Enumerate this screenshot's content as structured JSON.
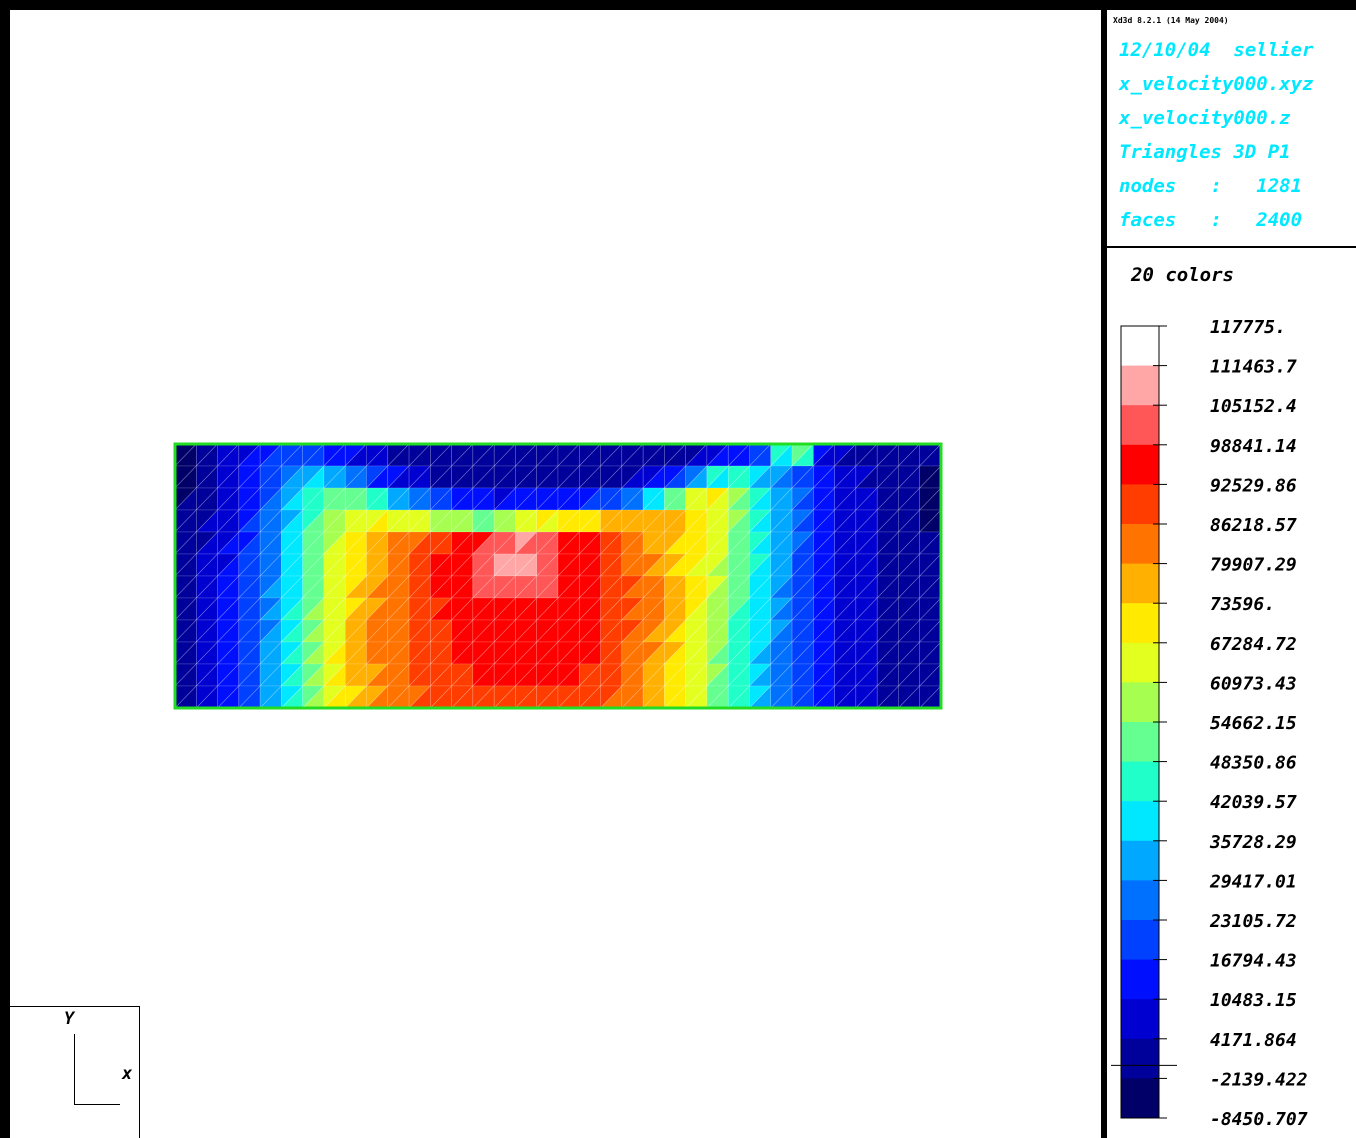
{
  "header": {
    "version": "Xd3d 8.2.1 (14 May 2004)",
    "info_lines": [
      "12/10/04  sellier",
      "x_velocity000.xyz",
      "x_velocity000.z",
      "Triangles 3D P1",
      "nodes   :   1281",
      "faces   :   2400"
    ],
    "text_color": "#00e8ff"
  },
  "legend": {
    "title": "20 colors",
    "colors": [
      "#ffffff",
      "#ffa7a7",
      "#ff5757",
      "#ff0000",
      "#ff3d00",
      "#ff7300",
      "#ffb000",
      "#ffea00",
      "#e2ff20",
      "#a6ff50",
      "#64ff90",
      "#20ffca",
      "#00e8ff",
      "#00a8ff",
      "#0070ff",
      "#0040ff",
      "#0010ff",
      "#0000d0",
      "#00009a",
      "#000068"
    ],
    "labels": [
      "117775.",
      "111463.7",
      "105152.4",
      "98841.14",
      "92529.86",
      "86218.57",
      "79907.29",
      "73596.",
      "67284.72",
      "60973.43",
      "54662.15",
      "48350.86",
      "42039.57",
      "35728.29",
      "29417.01",
      "23105.72",
      "16794.43",
      "10483.15",
      "4171.864",
      "-2139.422",
      "-8450.707"
    ]
  },
  "chart_data": {
    "type": "heatmap",
    "title": "",
    "field": "x_velocity",
    "value_range": [
      -8450.707,
      117775.0
    ],
    "levels": 20,
    "grid": "triangular mesh",
    "outline_color": "#22dd22",
    "cols": 36,
    "rows": 12,
    "values": [
      [
        -3000,
        -2000,
        3000,
        8000,
        14000,
        18000,
        16000,
        12000,
        9000,
        6000,
        3000,
        1000,
        0,
        0,
        0,
        0,
        0,
        0,
        0,
        0,
        0,
        0,
        0,
        0,
        0,
        0,
        2000,
        12000,
        30000,
        80000,
        14000,
        4000,
        3000,
        0,
        0,
        -2000
      ],
      [
        -4000,
        -2000,
        5000,
        11000,
        18000,
        26000,
        34000,
        30000,
        22000,
        14000,
        8000,
        4000,
        2000,
        0,
        0,
        0,
        0,
        0,
        0,
        0,
        0,
        0,
        1000,
        3000,
        10000,
        30000,
        45000,
        38000,
        30000,
        22000,
        14000,
        8000,
        5000,
        2000,
        0,
        -2000
      ],
      [
        -4000,
        -1000,
        6000,
        12000,
        20000,
        30000,
        42000,
        50000,
        48000,
        40000,
        30000,
        20000,
        12000,
        6000,
        2000,
        0,
        0,
        0,
        0,
        0,
        1000,
        4000,
        18000,
        40000,
        60000,
        72000,
        62000,
        46000,
        36000,
        26000,
        18000,
        10000,
        6000,
        3000,
        0,
        -3000
      ],
      [
        -3000,
        1000,
        7000,
        13000,
        21000,
        32000,
        44000,
        55000,
        62000,
        65000,
        60000,
        55000,
        50000,
        45000,
        40000,
        38000,
        50000,
        55000,
        60000,
        62000,
        68000,
        76000,
        80000,
        76000,
        72000,
        68000,
        60000,
        48000,
        36000,
        26000,
        18000,
        11000,
        7000,
        3000,
        0,
        -3000
      ],
      [
        -2000,
        2000,
        8000,
        14000,
        22000,
        33000,
        46000,
        58000,
        67000,
        74000,
        80000,
        84000,
        86000,
        90000,
        96000,
        100000,
        104000,
        102000,
        98000,
        96000,
        90000,
        86000,
        80000,
        76000,
        72000,
        66000,
        58000,
        46000,
        36000,
        26000,
        18000,
        11000,
        7000,
        3000,
        0,
        -2000
      ],
      [
        -2000,
        3000,
        8000,
        15000,
        23000,
        34000,
        47000,
        59000,
        69000,
        76000,
        83000,
        88000,
        92000,
        95000,
        100000,
        108000,
        112000,
        106000,
        100000,
        96000,
        90000,
        86000,
        82000,
        76000,
        70000,
        64000,
        56000,
        46000,
        35000,
        25000,
        17000,
        11000,
        7000,
        3000,
        0,
        -2000
      ],
      [
        -1000,
        3000,
        9000,
        15000,
        24000,
        35000,
        48000,
        60000,
        70000,
        78000,
        84000,
        88000,
        93000,
        96000,
        98000,
        104000,
        106000,
        102000,
        98000,
        96000,
        92000,
        88000,
        84000,
        78000,
        72000,
        64000,
        54000,
        44000,
        34000,
        25000,
        17000,
        11000,
        7000,
        3000,
        0,
        -1000
      ],
      [
        -1000,
        4000,
        9000,
        16000,
        25000,
        36000,
        49000,
        61000,
        71000,
        78000,
        84000,
        88000,
        92000,
        95000,
        96000,
        98000,
        98000,
        98000,
        97000,
        95000,
        92000,
        88000,
        84000,
        78000,
        70000,
        62000,
        52000,
        42000,
        33000,
        24000,
        17000,
        11000,
        7000,
        3000,
        0,
        -1000
      ],
      [
        0,
        4000,
        10000,
        16000,
        26000,
        37000,
        50000,
        62000,
        72000,
        79000,
        84000,
        88000,
        91000,
        94000,
        96000,
        97000,
        97000,
        98000,
        97000,
        96000,
        92000,
        88000,
        83000,
        77000,
        69000,
        60000,
        50000,
        40000,
        32000,
        24000,
        16000,
        10000,
        6000,
        3000,
        0,
        0
      ],
      [
        0,
        4000,
        10000,
        17000,
        27000,
        38000,
        51000,
        63000,
        72000,
        79000,
        84000,
        87000,
        90000,
        93000,
        95000,
        96000,
        96000,
        97000,
        98000,
        95000,
        91000,
        87000,
        82000,
        76000,
        68000,
        59000,
        49000,
        40000,
        31000,
        23000,
        16000,
        10000,
        6000,
        3000,
        0,
        0
      ],
      [
        0,
        4000,
        10000,
        17000,
        27000,
        38000,
        51000,
        63000,
        72000,
        79000,
        83000,
        86000,
        89000,
        92000,
        94000,
        95000,
        95000,
        96000,
        95000,
        93000,
        90000,
        86000,
        81000,
        75000,
        67000,
        58000,
        48000,
        39000,
        30000,
        22000,
        15000,
        10000,
        6000,
        3000,
        0,
        0
      ],
      [
        0,
        4000,
        10000,
        17000,
        27000,
        38000,
        51000,
        63000,
        72000,
        78000,
        82000,
        85000,
        88000,
        90000,
        91000,
        92000,
        92000,
        92000,
        91000,
        90000,
        88000,
        84000,
        80000,
        74000,
        66000,
        57000,
        47000,
        38000,
        29000,
        21000,
        15000,
        9000,
        6000,
        3000,
        0,
        0
      ]
    ]
  }
}
